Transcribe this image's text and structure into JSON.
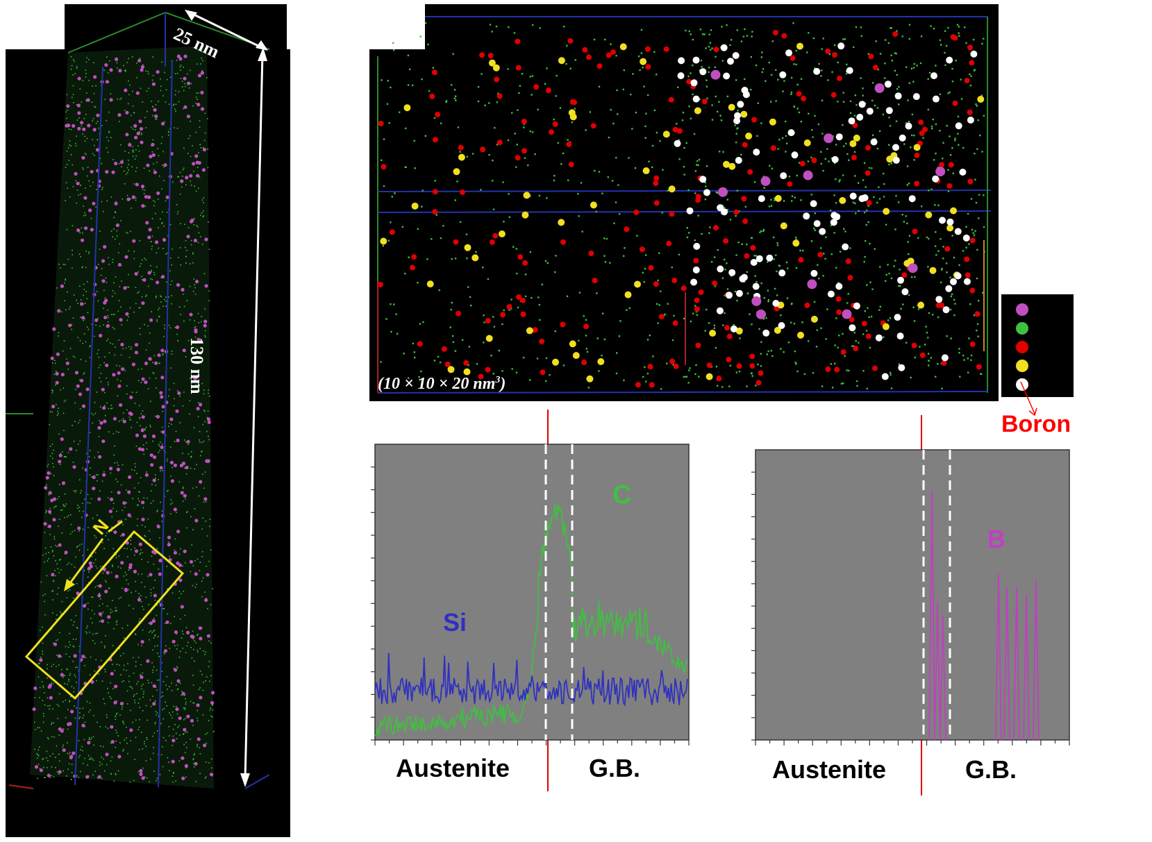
{
  "left_panel": {
    "dim_width": "25 nm",
    "dim_height": "130 nm",
    "roi_label": "N"
  },
  "atom_map": {
    "volume_label_main": "(10 × 10 × 20 nm",
    "volume_label_sup": "3",
    "volume_label_end": ")",
    "legend": {
      "colors": [
        "#c050c0",
        "#40c040",
        "#e00000",
        "#f0e020",
        "#ffffff"
      ],
      "annotation": "Boron",
      "annotation_color": "#ff0000"
    }
  },
  "profile_left": {
    "series": [
      {
        "name": "Si",
        "color": "#3030c0"
      },
      {
        "name": "C",
        "color": "#40c040"
      }
    ],
    "region_left": "Austenite",
    "region_right": "G.B."
  },
  "profile_right": {
    "series": [
      {
        "name": "B",
        "color": "#c040c0"
      }
    ],
    "region_left": "Austenite",
    "region_right": "G.B."
  }
}
